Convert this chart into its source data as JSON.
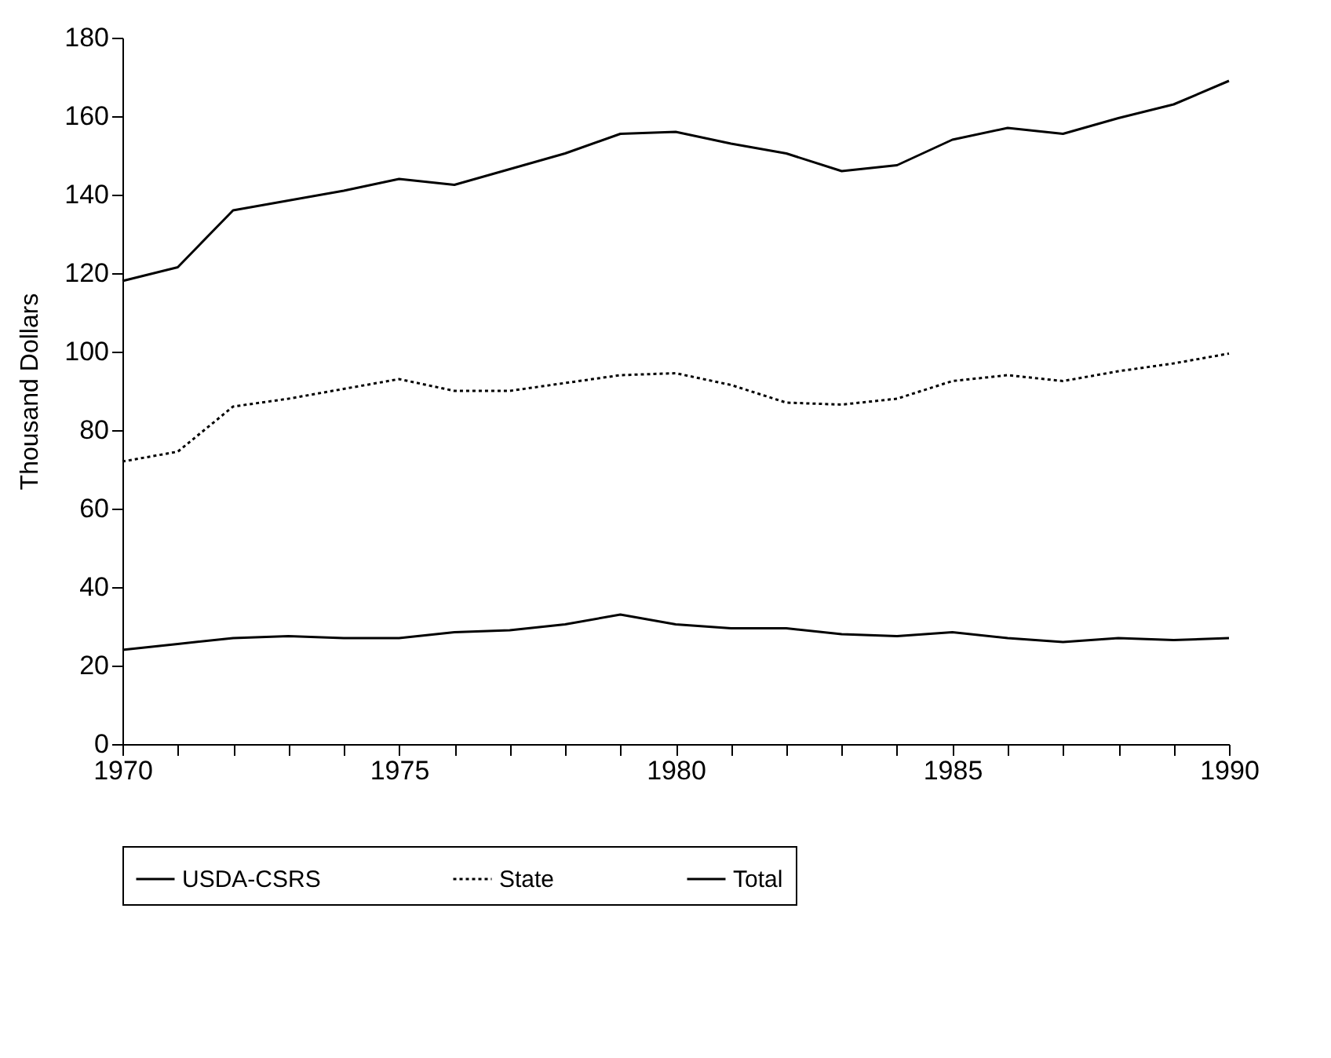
{
  "chart_data": {
    "type": "line",
    "ylabel": "Thousand Dollars",
    "x": [
      1970,
      1971,
      1972,
      1973,
      1974,
      1975,
      1976,
      1977,
      1978,
      1979,
      1980,
      1981,
      1982,
      1983,
      1984,
      1985,
      1986,
      1987,
      1988,
      1989,
      1990
    ],
    "series": [
      {
        "name": "USDA-CSRS",
        "color": "#000000",
        "line_style": "solid",
        "values": [
          24,
          25.5,
          27,
          27.5,
          27,
          27,
          28.5,
          29,
          30.5,
          33,
          30.5,
          29.5,
          29.5,
          28,
          27.5,
          28.5,
          27,
          26,
          27,
          26.5,
          27
        ]
      },
      {
        "name": "State",
        "color": "#000000",
        "line_style": "dotted",
        "values": [
          72,
          74.5,
          86,
          88,
          90.5,
          93,
          90,
          90,
          92,
          94,
          94.5,
          91.5,
          87,
          86.5,
          88,
          92.5,
          94,
          92.5,
          95,
          97,
          99.5
        ]
      },
      {
        "name": "Total",
        "color": "#000000",
        "line_style": "solid",
        "values": [
          118,
          121.5,
          136,
          138.5,
          141,
          144,
          142.5,
          146.5,
          150.5,
          155.5,
          156,
          153,
          150.5,
          146,
          147.5,
          154,
          157,
          155.5,
          159.5,
          163,
          169
        ]
      }
    ],
    "xlim": [
      1970,
      1990
    ],
    "xticks": [
      1970,
      {
        "value": 1971,
        "label": null
      },
      {
        "value": 1972,
        "label": null
      },
      {
        "value": 1973,
        "label": null
      },
      {
        "value": 1974,
        "label": null
      },
      1975,
      {
        "value": 1976,
        "label": null
      },
      {
        "value": 1977,
        "label": null
      },
      {
        "value": 1978,
        "label": null
      },
      {
        "value": 1979,
        "label": null
      },
      1980,
      {
        "value": 1981,
        "label": null
      },
      {
        "value": 1982,
        "label": null
      },
      {
        "value": 1983,
        "label": null
      },
      {
        "value": 1984,
        "label": null
      },
      1985,
      {
        "value": 1986,
        "label": null
      },
      {
        "value": 1987,
        "label": null
      },
      {
        "value": 1988,
        "label": null
      },
      {
        "value": 1989,
        "label": null
      },
      1990
    ],
    "ylim": [
      0,
      180
    ],
    "yticks": [
      0,
      20,
      40,
      60,
      80,
      100,
      120,
      140,
      160,
      180
    ],
    "grid": false,
    "legend": "bottom",
    "marker": "none"
  }
}
